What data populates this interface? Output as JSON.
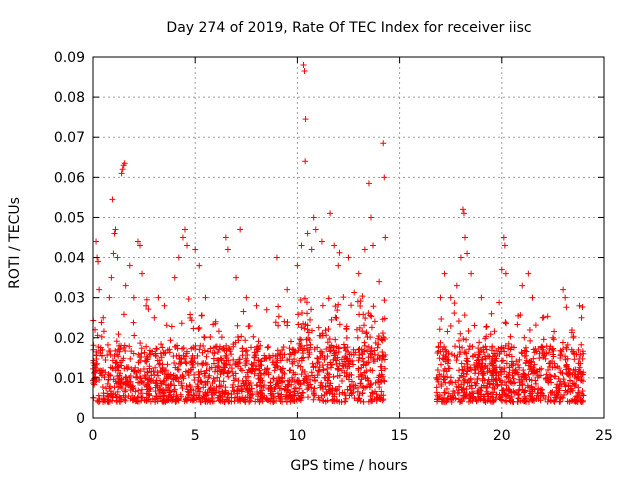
{
  "chart_data": {
    "type": "scatter",
    "title": "Day 274 of 2019, Rate Of TEC Index for receiver iisc",
    "xlabel": "GPS time / hours",
    "ylabel": "ROTI / TECUs",
    "xlim": [
      0,
      25
    ],
    "ylim": [
      0,
      0.09
    ],
    "x_ticks": [
      "0",
      "5",
      "10",
      "15",
      "20",
      "25"
    ],
    "x_tick_values": [
      0,
      5,
      10,
      15,
      20,
      25
    ],
    "y_ticks": [
      "0",
      "0.01",
      "0.02",
      "0.03",
      "0.04",
      "0.05",
      "0.06",
      "0.07",
      "0.08",
      "0.09"
    ],
    "y_tick_values": [
      0,
      0.01,
      0.02,
      0.03,
      0.04,
      0.05,
      0.06,
      0.07,
      0.08,
      0.09
    ],
    "grid": true,
    "marker": "plus",
    "marker_color": "#ff0000",
    "data_gap_hours": [
      14.3,
      16.8
    ],
    "series": [
      {
        "name": "ROTI",
        "points": [
          [
            0.1,
            0.022
          ],
          [
            0.15,
            0.044
          ],
          [
            0.2,
            0.04
          ],
          [
            0.25,
            0.039
          ],
          [
            0.3,
            0.032
          ],
          [
            0.5,
            0.025
          ],
          [
            0.8,
            0.03
          ],
          [
            0.9,
            0.035
          ],
          [
            1.0,
            0.041
          ],
          [
            1.05,
            0.046
          ],
          [
            1.1,
            0.047
          ],
          [
            1.2,
            0.04
          ],
          [
            0.95,
            0.0545
          ],
          [
            1.4,
            0.061
          ],
          [
            1.45,
            0.062
          ],
          [
            1.5,
            0.063
          ],
          [
            1.55,
            0.0635
          ],
          [
            1.6,
            0.033
          ],
          [
            1.8,
            0.038
          ],
          [
            2.0,
            0.03
          ],
          [
            2.2,
            0.044
          ],
          [
            2.3,
            0.043
          ],
          [
            2.4,
            0.036
          ],
          [
            2.6,
            0.028
          ],
          [
            3.0,
            0.025
          ],
          [
            3.2,
            0.03
          ],
          [
            3.5,
            0.028
          ],
          [
            4.0,
            0.035
          ],
          [
            4.2,
            0.04
          ],
          [
            4.4,
            0.045
          ],
          [
            4.5,
            0.047
          ],
          [
            4.6,
            0.043
          ],
          [
            5.0,
            0.042
          ],
          [
            5.2,
            0.038
          ],
          [
            5.5,
            0.03
          ],
          [
            6.0,
            0.024
          ],
          [
            6.5,
            0.045
          ],
          [
            6.6,
            0.042
          ],
          [
            7.0,
            0.035
          ],
          [
            7.2,
            0.047
          ],
          [
            7.5,
            0.03
          ],
          [
            8.0,
            0.028
          ],
          [
            8.5,
            0.027
          ],
          [
            9.0,
            0.04
          ],
          [
            9.5,
            0.032
          ],
          [
            10.0,
            0.038
          ],
          [
            10.2,
            0.043
          ],
          [
            10.3,
            0.088
          ],
          [
            10.35,
            0.0865
          ],
          [
            10.4,
            0.0745
          ],
          [
            10.38,
            0.064
          ],
          [
            10.5,
            0.046
          ],
          [
            10.7,
            0.042
          ],
          [
            10.8,
            0.05
          ],
          [
            10.9,
            0.047
          ],
          [
            11.2,
            0.044
          ],
          [
            11.6,
            0.051
          ],
          [
            11.8,
            0.043
          ],
          [
            12.0,
            0.038
          ],
          [
            12.5,
            0.04
          ],
          [
            13.0,
            0.036
          ],
          [
            13.3,
            0.042
          ],
          [
            13.5,
            0.0585
          ],
          [
            13.6,
            0.05
          ],
          [
            13.7,
            0.043
          ],
          [
            14.0,
            0.034
          ],
          [
            14.2,
            0.0685
          ],
          [
            14.25,
            0.06
          ],
          [
            14.3,
            0.045
          ],
          [
            17.0,
            0.03
          ],
          [
            17.2,
            0.036
          ],
          [
            17.5,
            0.03
          ],
          [
            17.8,
            0.033
          ],
          [
            18.0,
            0.04
          ],
          [
            18.1,
            0.052
          ],
          [
            18.15,
            0.051
          ],
          [
            18.2,
            0.045
          ],
          [
            18.3,
            0.041
          ],
          [
            18.5,
            0.036
          ],
          [
            19.0,
            0.03
          ],
          [
            19.5,
            0.026
          ],
          [
            20.0,
            0.037
          ],
          [
            20.1,
            0.045
          ],
          [
            20.15,
            0.043
          ],
          [
            20.2,
            0.036
          ],
          [
            21.0,
            0.033
          ],
          [
            21.3,
            0.036
          ],
          [
            21.5,
            0.03
          ],
          [
            22.0,
            0.025
          ],
          [
            22.5,
            0.02
          ],
          [
            23.0,
            0.032
          ],
          [
            23.1,
            0.03
          ],
          [
            23.5,
            0.02
          ],
          [
            23.8,
            0.028
          ],
          [
            23.9,
            0.025
          ]
        ]
      }
    ]
  }
}
